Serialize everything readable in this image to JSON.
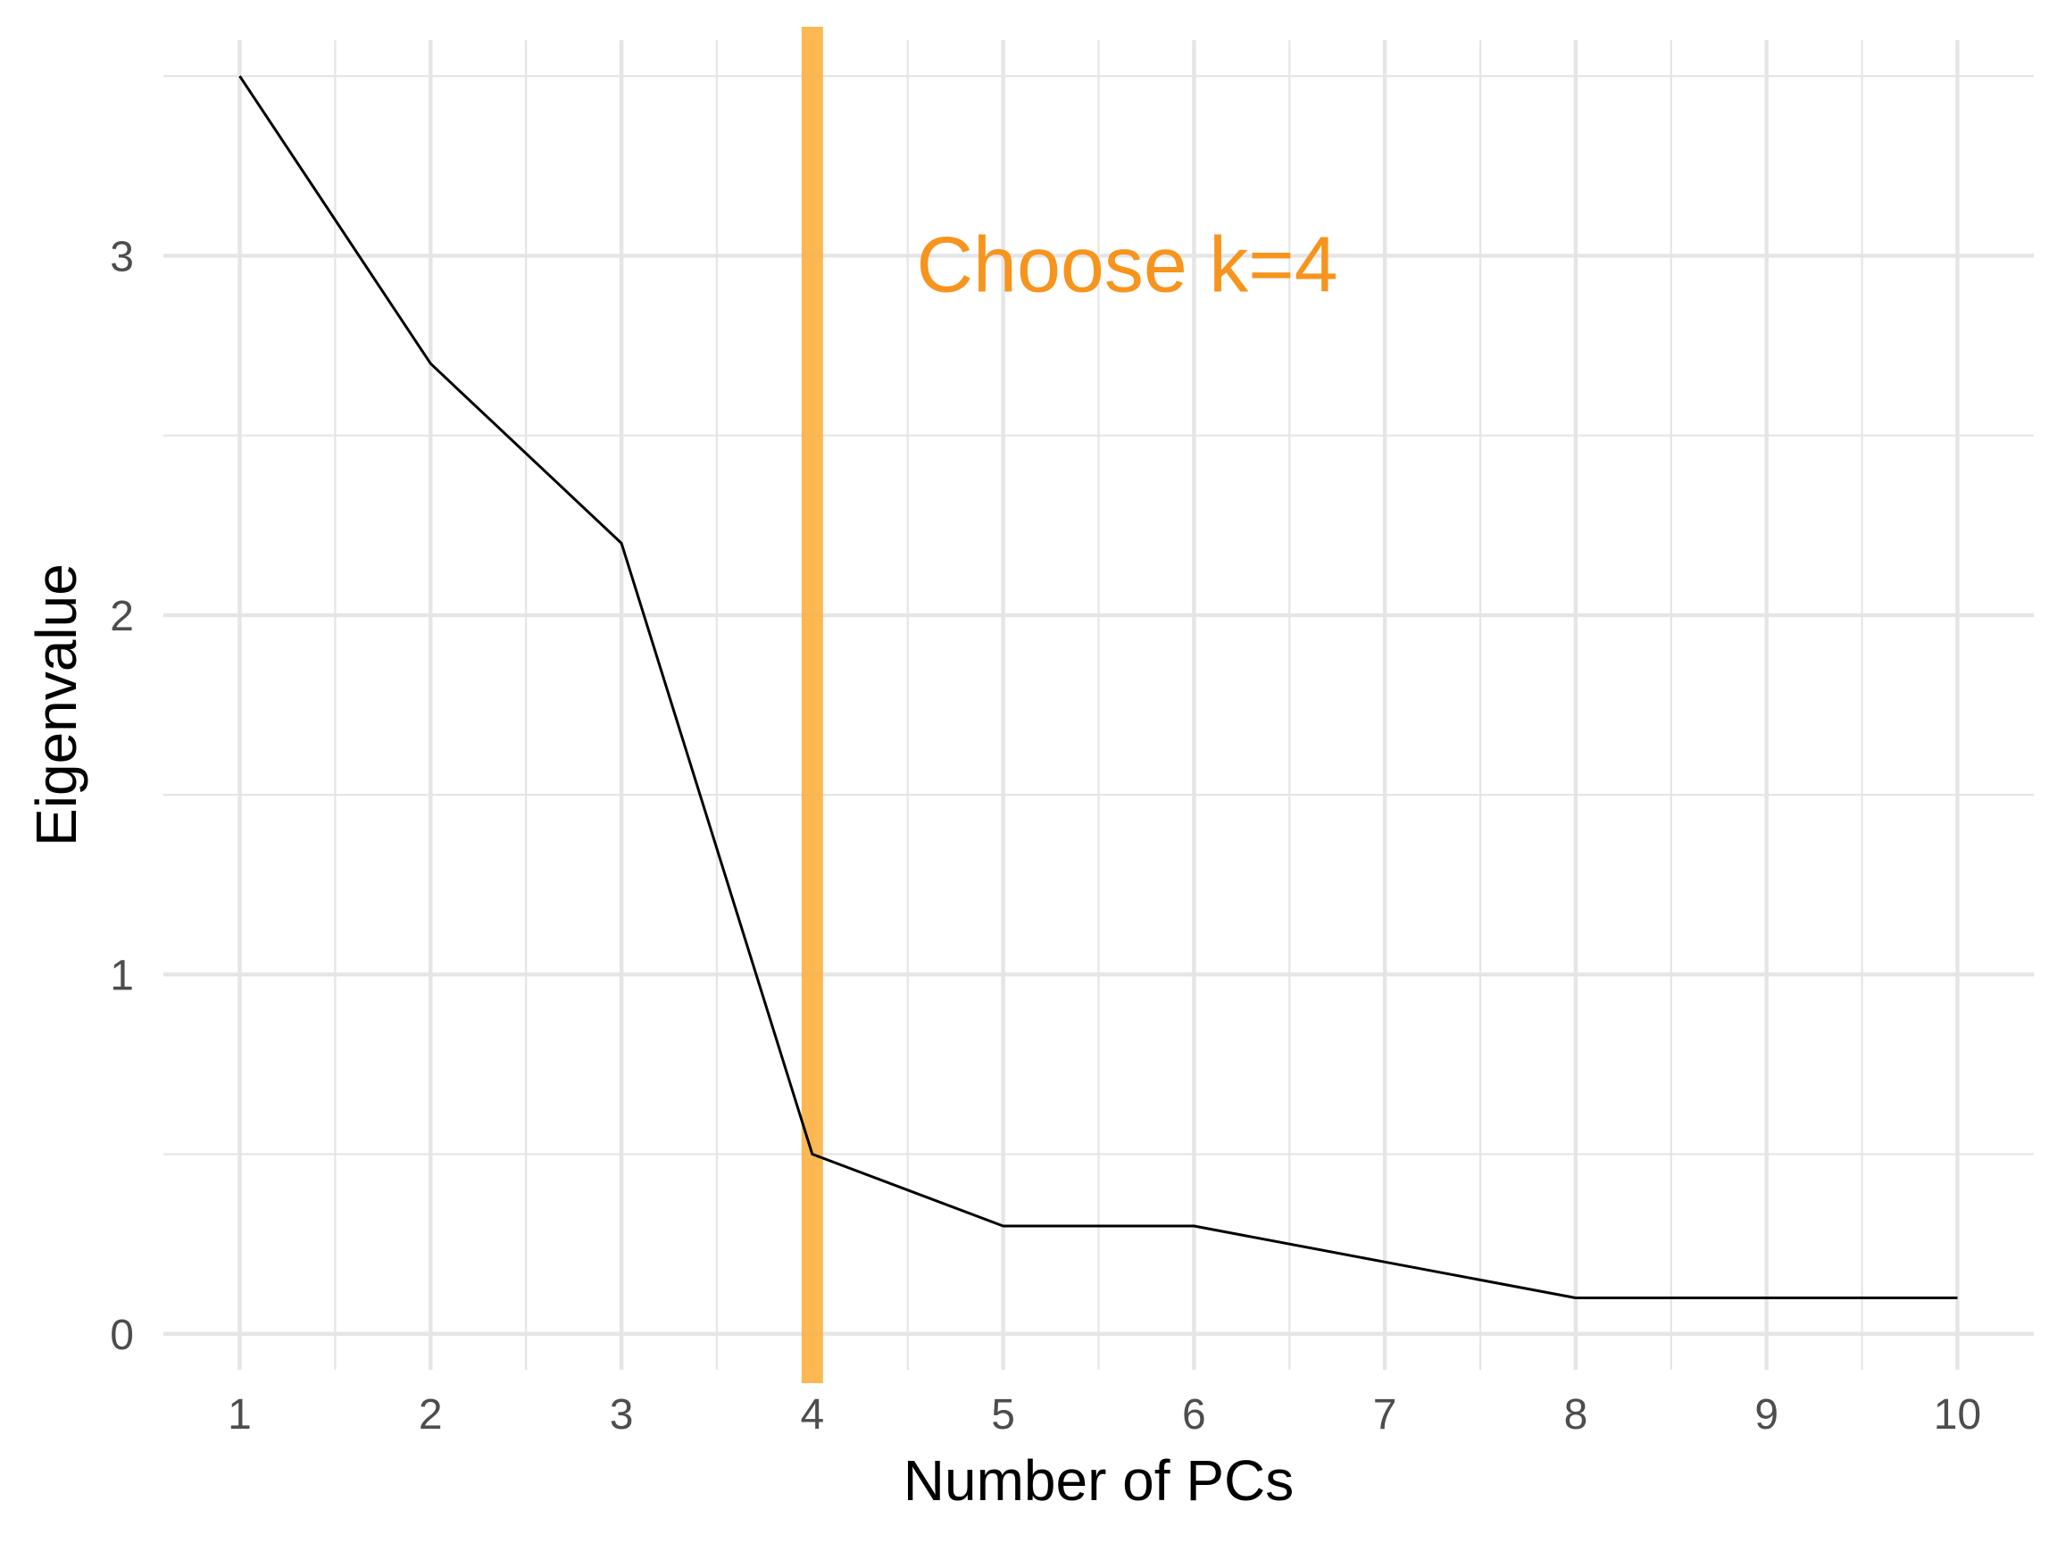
{
  "chart_data": {
    "type": "line",
    "title": "",
    "xlabel": "Number of PCs",
    "ylabel": "Eigenvalue",
    "x": [
      1,
      2,
      3,
      4,
      5,
      6,
      7,
      8,
      9,
      10
    ],
    "series": [
      {
        "values": [
          3.5,
          2.7,
          2.2,
          0.5,
          0.3,
          0.3,
          0.2,
          0.1,
          0.1,
          0.1
        ]
      }
    ],
    "xlim": [
      0.6,
      10.4
    ],
    "ylim": [
      -0.1,
      3.6
    ],
    "x_ticks": [
      1,
      2,
      3,
      4,
      5,
      6,
      7,
      8,
      9,
      10
    ],
    "x_tick_labels": [
      "1",
      "2",
      "3",
      "4",
      "5",
      "6",
      "7",
      "8",
      "9",
      "10"
    ],
    "y_ticks": [
      0,
      1,
      2,
      3
    ],
    "y_tick_labels": [
      "0",
      "1",
      "2",
      "3"
    ],
    "x_minor_grid": [
      1.5,
      2.5,
      3.5,
      4.5,
      5.5,
      6.5,
      7.5,
      8.5,
      9.5
    ],
    "y_minor_grid": [
      0.5,
      1.5,
      2.5,
      3.5
    ],
    "grid": true,
    "vline": {
      "x": 4,
      "color": "#fbb040"
    },
    "annotation": {
      "text": "Choose k=4",
      "x": 5.65,
      "y": 2.98,
      "color": "#f7941d"
    },
    "line_color": "#000000",
    "grid_color": "#e5e5e5"
  }
}
